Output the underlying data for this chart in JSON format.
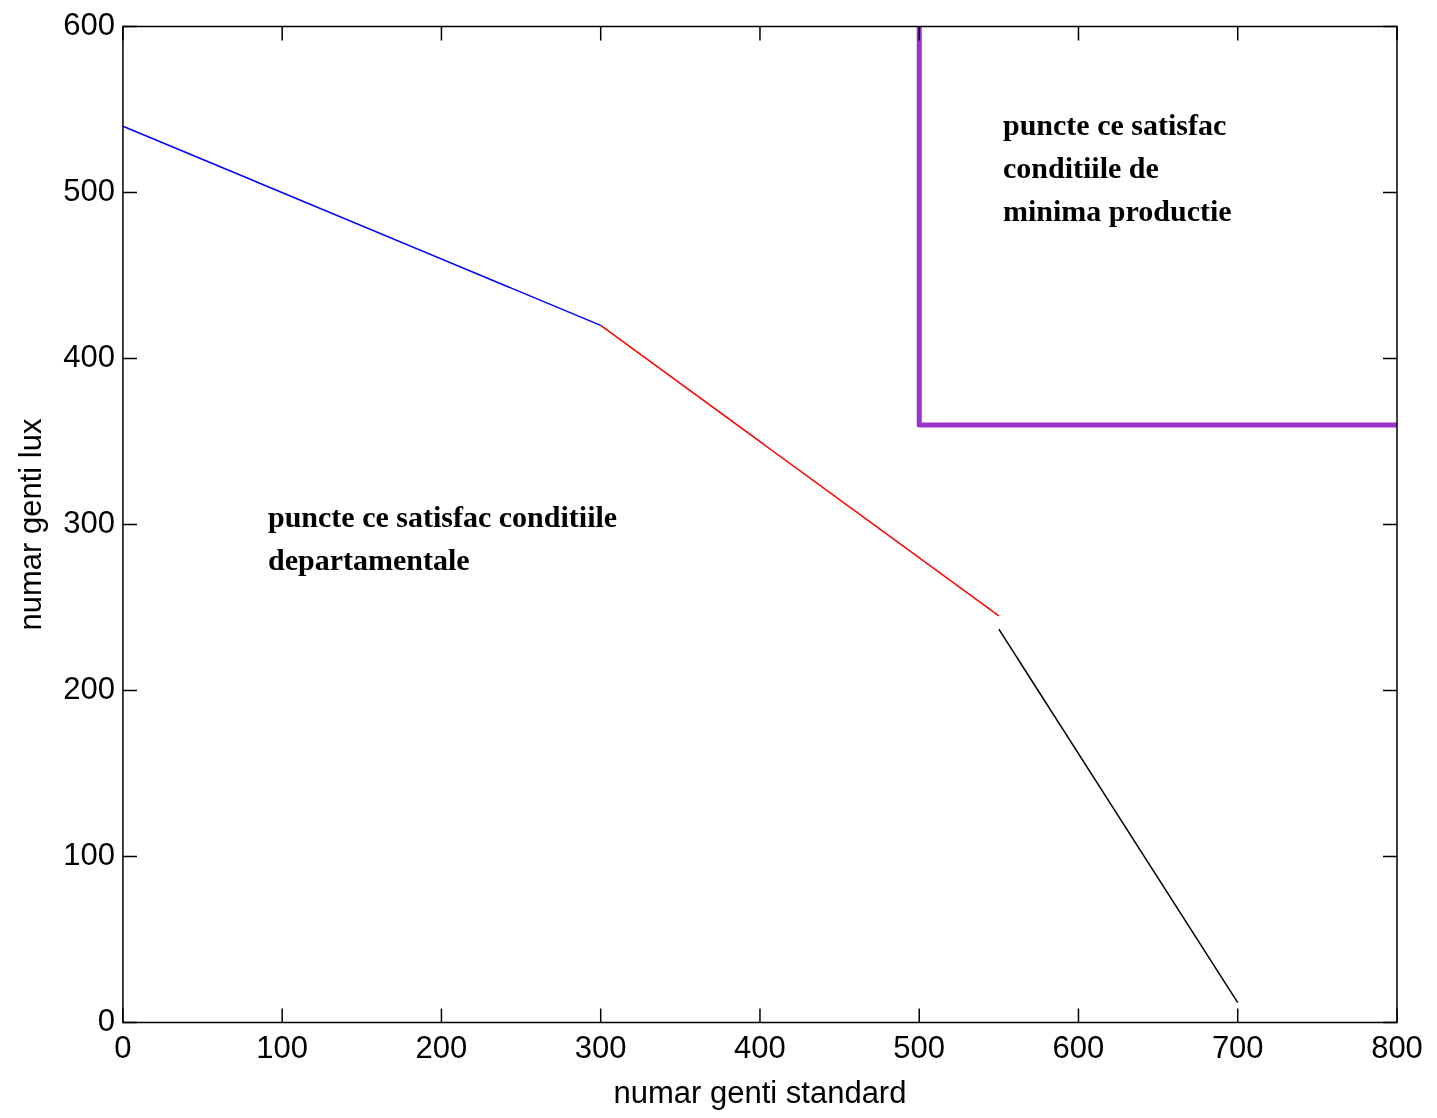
{
  "chart_data": {
    "type": "line",
    "xlabel": "numar genti standard",
    "ylabel": "numar genti lux",
    "xlim": [
      0,
      800
    ],
    "xticks": [
      0,
      100,
      200,
      300,
      400,
      500,
      600,
      700,
      800
    ],
    "ylim": [
      0,
      600
    ],
    "yticks": [
      0,
      100,
      200,
      300,
      400,
      500,
      600
    ],
    "grid": false,
    "legend": false,
    "marker": "none",
    "series": [
      {
        "color": "#0000ff",
        "x": [
          0,
          300
        ],
        "values": [
          540,
          420
        ]
      },
      {
        "color": "#ff0000",
        "x": [
          300,
          550
        ],
        "values": [
          420,
          245
        ]
      },
      {
        "color": "#000000",
        "x": [
          550,
          700
        ],
        "values": [
          237,
          12
        ]
      },
      {
        "color": "#9933cc",
        "x": [
          500,
          500,
          800
        ],
        "values": [
          600,
          360,
          360
        ]
      }
    ],
    "annotations": [
      "puncte ce satisfac conditiile\ndepartamentale",
      "puncte ce satisfac\nconditiile de\nminima productie"
    ]
  }
}
